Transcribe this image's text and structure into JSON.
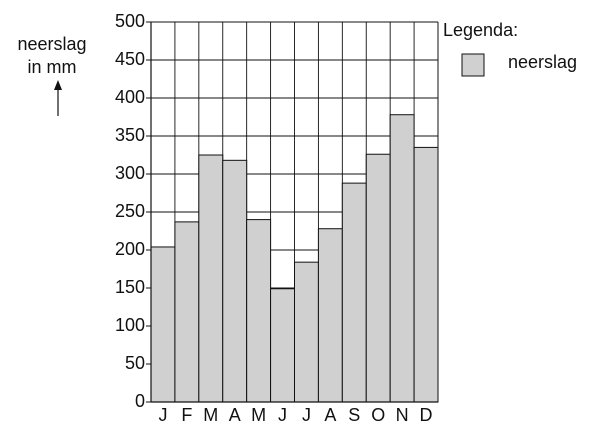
{
  "chart_data": {
    "type": "bar",
    "ylabel": [
      "neerslag",
      "in mm"
    ],
    "legend_title": "Legenda:",
    "categories": [
      "J",
      "F",
      "M",
      "A",
      "M",
      "J",
      "J",
      "A",
      "S",
      "O",
      "N",
      "D"
    ],
    "series": [
      {
        "name": "neerslag",
        "color": "#d0d0d0",
        "values": [
          204,
          237,
          325,
          318,
          240,
          149,
          184,
          228,
          288,
          326,
          378,
          335
        ]
      }
    ],
    "ylim": [
      0,
      500
    ],
    "yticks": [
      0,
      50,
      100,
      150,
      200,
      250,
      300,
      350,
      400,
      450,
      500
    ],
    "grid": true,
    "legend": "right"
  }
}
